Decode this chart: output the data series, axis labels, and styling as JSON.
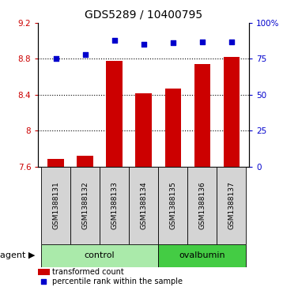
{
  "title": "GDS5289 / 10400795",
  "samples": [
    "GSM1388131",
    "GSM1388132",
    "GSM1388133",
    "GSM1388134",
    "GSM1388135",
    "GSM1388136",
    "GSM1388137"
  ],
  "bar_values": [
    7.68,
    7.72,
    8.78,
    8.42,
    8.47,
    8.74,
    8.82
  ],
  "dot_values": [
    75,
    78,
    88,
    85,
    86,
    87,
    87
  ],
  "bar_color": "#cc0000",
  "dot_color": "#0000cc",
  "ylim_left": [
    7.6,
    9.2
  ],
  "ylim_right": [
    0,
    100
  ],
  "yticks_left": [
    7.6,
    8.0,
    8.4,
    8.8,
    9.2
  ],
  "yticks_right": [
    0,
    25,
    50,
    75,
    100
  ],
  "ytick_labels_left": [
    "7.6",
    "8",
    "8.4",
    "8.8",
    "9.2"
  ],
  "ytick_labels_right": [
    "0",
    "25",
    "50",
    "75",
    "100%"
  ],
  "control_count": 4,
  "ovalbumin_count": 3,
  "control_label": "control",
  "ovalbumin_label": "ovalbumin",
  "agent_label": "agent",
  "legend_bar_label": "transformed count",
  "legend_dot_label": "percentile rank within the sample",
  "bar_bottom": 7.6,
  "group_bg_control": "#aaeaaa",
  "group_bg_ovalbumin": "#44cc44",
  "sample_bg": "#d4d4d4",
  "sample_font_size": 6.5,
  "title_font_size": 10,
  "dotted_grid_vals": [
    8.0,
    8.4,
    8.8
  ]
}
